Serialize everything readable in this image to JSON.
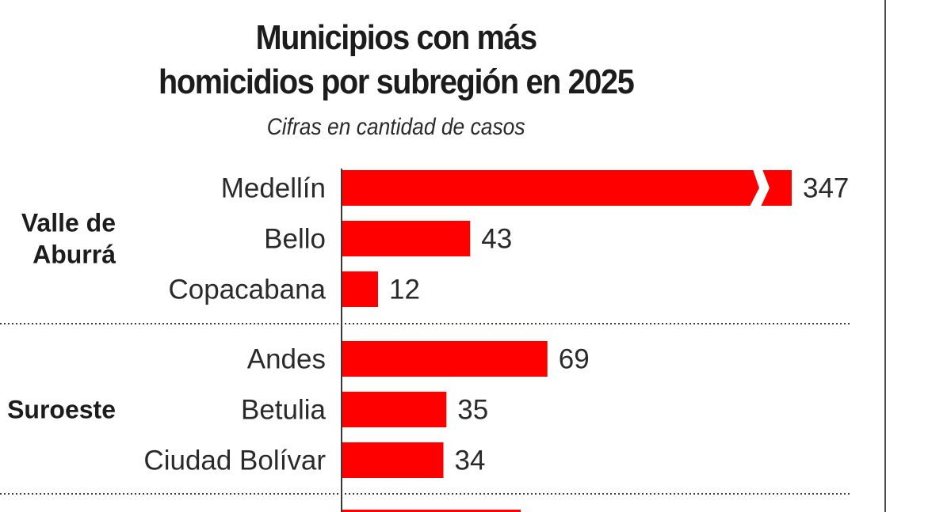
{
  "chart_data": {
    "type": "bar",
    "orientation": "horizontal",
    "title": "Municipios con más homicidios por subregión en 2025",
    "title_lines": [
      "Municipios con más",
      "homicidios por subregión en 2025"
    ],
    "subtitle": "Cifras en cantidad de casos",
    "xlabel": "",
    "ylabel": "",
    "grid": false,
    "bar_color": "#ff0000",
    "groups": [
      {
        "name": "Valle de Aburrá",
        "name_lines": [
          "Valle de",
          "Aburrá"
        ],
        "categories": [
          "Medellín",
          "Bello",
          "Copacabana"
        ],
        "values": [
          347,
          43,
          12
        ],
        "broken": [
          true,
          false,
          false
        ]
      },
      {
        "name": "Suroeste",
        "name_lines": [
          "Suroeste"
        ],
        "categories": [
          "Andes",
          "Betulia",
          "Ciudad Bolívar"
        ],
        "values": [
          69,
          35,
          34
        ],
        "broken": [
          false,
          false,
          false
        ]
      }
    ],
    "notes": "Medellín bar is drawn with a break (truncated axis). A further group is cut off at the bottom edge."
  }
}
